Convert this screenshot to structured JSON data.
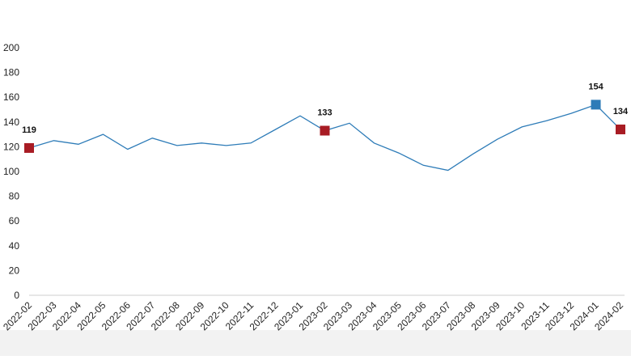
{
  "chart_data": {
    "type": "line",
    "title": "",
    "xlabel": "",
    "ylabel": "",
    "ylim": [
      0,
      200
    ],
    "yticks": [
      0,
      20,
      40,
      60,
      80,
      100,
      120,
      140,
      160,
      180,
      200
    ],
    "grid": false,
    "legend": "none",
    "categories": [
      "2022-02",
      "2022-03",
      "2022-04",
      "2022-05",
      "2022-06",
      "2022-07",
      "2022-08",
      "2022-09",
      "2022-10",
      "2022-11",
      "2022-12",
      "2023-01",
      "2023-02",
      "2023-03",
      "2023-04",
      "2023-05",
      "2023-06",
      "2023-07",
      "2023-08",
      "2023-09",
      "2023-10",
      "2023-11",
      "2023-12",
      "2024-01",
      "2024-02"
    ],
    "series": [
      {
        "values": [
          119,
          125,
          122,
          130,
          118,
          127,
          121,
          123,
          121,
          123,
          134,
          145,
          133,
          139,
          123,
          115,
          105,
          101,
          114,
          126,
          136,
          141,
          147,
          154,
          134
        ]
      }
    ],
    "highlighted_points": [
      {
        "category": "2022-02",
        "value": 119,
        "label": "119",
        "color": "#a81c24"
      },
      {
        "category": "2023-02",
        "value": 133,
        "label": "133",
        "color": "#a81c24"
      },
      {
        "category": "2024-01",
        "value": 154,
        "label": "154",
        "color": "#2e7cb8"
      },
      {
        "category": "2024-02",
        "value": 134,
        "label": "134",
        "color": "#a81c24"
      }
    ],
    "colors": {
      "line": "#2e7cb8",
      "axis": "#cfcfcf",
      "footer_band": "#f2f2f2"
    }
  }
}
